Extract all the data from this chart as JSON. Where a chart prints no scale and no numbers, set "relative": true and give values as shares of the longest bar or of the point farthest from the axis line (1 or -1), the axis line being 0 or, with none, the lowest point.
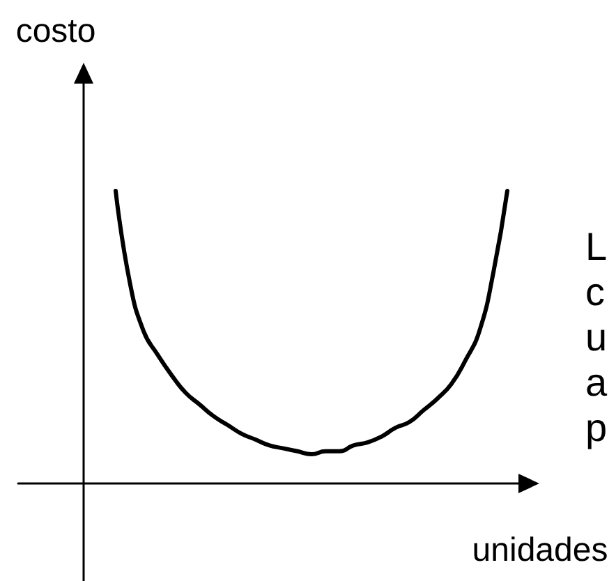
{
  "chart_data": {
    "type": "line",
    "xlabel": "unidades",
    "ylabel": "costo",
    "annotations": [
      "L",
      "c",
      "u",
      "a",
      "p"
    ],
    "categories": [
      null,
      null,
      null,
      null,
      null,
      null,
      null,
      null,
      null,
      null,
      null,
      null,
      null,
      null,
      null,
      null,
      null,
      null,
      null,
      null,
      null,
      null,
      null,
      null,
      null,
      null,
      null,
      null,
      null
    ],
    "values": [
      1.0,
      0.69,
      0.52,
      0.44,
      0.37,
      0.31,
      0.27,
      0.23,
      0.2,
      0.17,
      0.15,
      0.13,
      0.12,
      0.11,
      0.1,
      0.11,
      0.11,
      0.13,
      0.14,
      0.16,
      0.19,
      0.21,
      0.25,
      0.29,
      0.34,
      0.42,
      0.52,
      0.72,
      1.0
    ],
    "color": "#000000",
    "relative": true,
    "marker": "none",
    "line_style": "solid"
  }
}
